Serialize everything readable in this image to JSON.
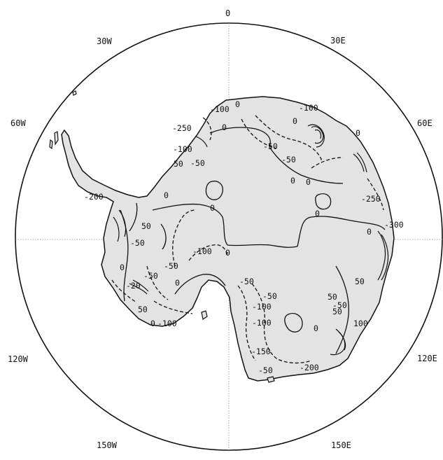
{
  "map": {
    "meridian_labels": {
      "lon_0": "0",
      "lon_30e": "30E",
      "lon_60e": "60E",
      "lon_120e": "120E",
      "lon_150e": "150E",
      "lon_30w": "30W",
      "lon_60w": "60W",
      "lon_120w": "120W",
      "lon_150w": "150W"
    },
    "contour_labels": {
      "c01": "-100",
      "c02": "0",
      "c03": "-250",
      "c04": "0",
      "c05": "-100",
      "c06": "-100",
      "c07": "50",
      "c08": "-50",
      "c09": "0",
      "c10": "-50",
      "c11": "-50",
      "c12": "0",
      "c13": "0",
      "c14": "0",
      "c15": "-250",
      "c16": "-200",
      "c17": "0",
      "c18": "50",
      "c19": "0",
      "c20": "0",
      "c21": "-300",
      "c22": "0",
      "c23": "-50",
      "c24": "-100",
      "c25": "0",
      "c26": "-50",
      "c27": "50",
      "c28": "-50",
      "c29": "50",
      "c30": "-100",
      "c31": "-50",
      "c32": "-100",
      "c33": "50",
      "c34": "-100",
      "c35": "50",
      "c36": "0",
      "c37": "-150",
      "c38": "-200",
      "c39": "-50",
      "c40": "-50",
      "c41": "-20",
      "c42": "-50",
      "c43": "0",
      "c44": "0",
      "c45": "0",
      "c46": "100"
    },
    "colors": {
      "land": "#e3e3e3",
      "ink": "#111111",
      "graticule": "#8a8a8a"
    }
  }
}
